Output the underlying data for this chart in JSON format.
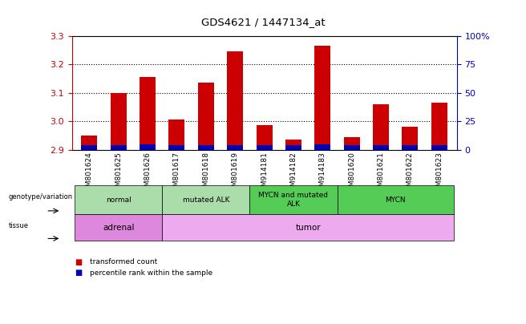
{
  "title": "GDS4621 / 1447134_at",
  "samples": [
    "GSM801624",
    "GSM801625",
    "GSM801626",
    "GSM801617",
    "GSM801618",
    "GSM801619",
    "GSM914181",
    "GSM914182",
    "GSM914183",
    "GSM801620",
    "GSM801621",
    "GSM801622",
    "GSM801623"
  ],
  "red_values": [
    2.95,
    3.1,
    3.155,
    3.005,
    3.135,
    3.245,
    2.985,
    2.935,
    3.265,
    2.945,
    3.06,
    2.98,
    3.065
  ],
  "blue_values": [
    2.915,
    2.915,
    2.918,
    2.916,
    2.916,
    2.916,
    2.916,
    2.916,
    2.918,
    2.915,
    2.916,
    2.915,
    2.916
  ],
  "ymin": 2.9,
  "ymax": 3.3,
  "y2min": 0,
  "y2max": 100,
  "yticks": [
    2.9,
    3.0,
    3.1,
    3.2,
    3.3
  ],
  "y2ticks": [
    0,
    25,
    50,
    75,
    100
  ],
  "y2tick_labels": [
    "0",
    "25",
    "50",
    "75",
    "100%"
  ],
  "bar_width": 0.55,
  "genotype_groups": [
    {
      "label": "normal",
      "start": 0,
      "end": 3,
      "color": "#aaddaa"
    },
    {
      "label": "mutated ALK",
      "start": 3,
      "end": 6,
      "color": "#aaddaa"
    },
    {
      "label": "MYCN and mutated\nALK",
      "start": 6,
      "end": 9,
      "color": "#55cc55"
    },
    {
      "label": "MYCN",
      "start": 9,
      "end": 13,
      "color": "#55cc55"
    }
  ],
  "tissue_groups": [
    {
      "label": "adrenal",
      "start": 0,
      "end": 3,
      "color": "#dd88dd"
    },
    {
      "label": "tumor",
      "start": 3,
      "end": 13,
      "color": "#eeaaee"
    }
  ],
  "legend_red": "transformed count",
  "legend_blue": "percentile rank within the sample",
  "red_color": "#cc0000",
  "blue_color": "#0000bb",
  "tick_color_left": "#cc0000",
  "tick_color_right": "#0000bb",
  "bg_color": "#ffffff",
  "bar_area_bg": "#ffffff"
}
